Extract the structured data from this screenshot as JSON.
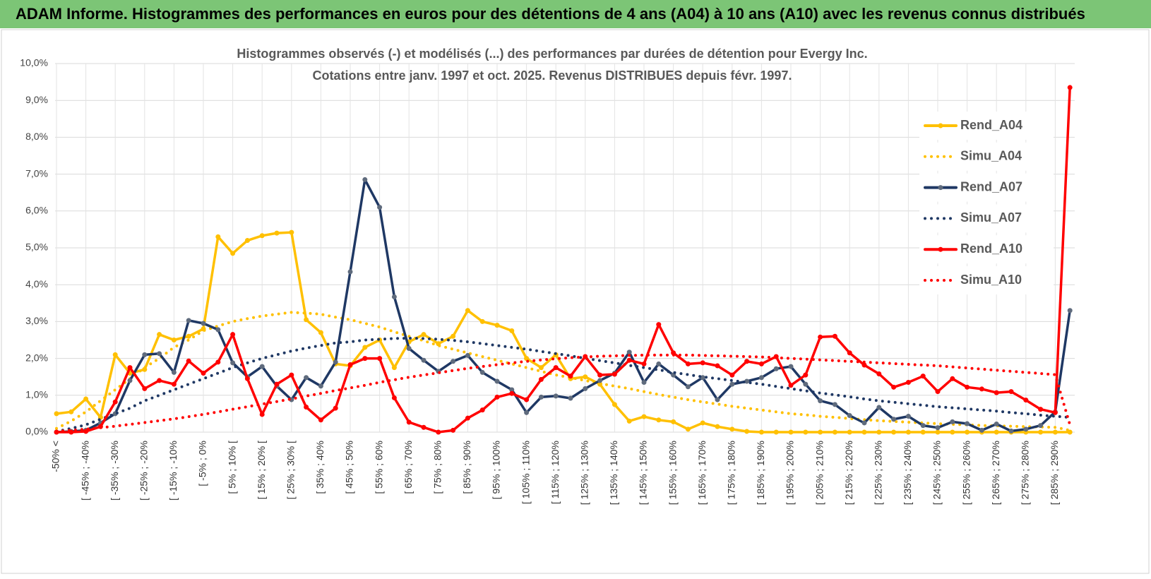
{
  "header": {
    "title": "ADAM Informe. Histogrammes des performances en euros pour des détentions de 4 ans (A04) à 10 ans (A10) avec les revenus connus distribués"
  },
  "chart_data": {
    "type": "line",
    "title": [
      "Histogrammes observés (-) et modélisés (...) des performances par durées de détention pour Evergy Inc.",
      "Cotations entre janv. 1997 et oct. 2025. Revenus DISTRIBUES depuis févr. 1997."
    ],
    "categories": [
      "-50% <",
      null,
      "[ -45% ; -40%",
      null,
      "[ -35% ; -30%",
      null,
      "[ -25% ; -20%",
      null,
      "[ -15% ; -10%",
      null,
      "[ -5% ; 0%",
      null,
      "[ 5% ; 10% [",
      null,
      "[ 15% ; 20% [",
      null,
      "[ 25% ; 30% [",
      null,
      "[ 35% ; 40%",
      null,
      "[ 45% ; 50%",
      null,
      "[ 55% ; 60%",
      null,
      "[ 65% ; 70%",
      null,
      "[ 75% ; 80%",
      null,
      "[ 85% ; 90%",
      null,
      "[ 95% ; 100%",
      null,
      "[ 105% ; 110%",
      null,
      "[ 115% ; 120%",
      null,
      "[ 125% ; 130%",
      null,
      "[ 135% ; 140%",
      null,
      "[ 145% ; 150%",
      null,
      "[ 155% ; 160%",
      null,
      "[ 165% ; 170%",
      null,
      "[ 175% ; 180%",
      null,
      "[ 185% ; 190%",
      null,
      "[ 195% ; 200%",
      null,
      "[ 205% ; 210%",
      null,
      "[ 215% ; 220%",
      null,
      "[ 225% ; 230%",
      null,
      "[ 235% ; 240%",
      null,
      "[ 245% ; 250%",
      null,
      "[ 255% ; 260%",
      null,
      "[ 265% ; 270%",
      null,
      "[ 275% ; 280%",
      null,
      "[ 285% ; 290%",
      null
    ],
    "series": [
      {
        "name": "Rend_A04",
        "color": "#ffc000",
        "marker_color": "#ffc000",
        "style": "solid",
        "values": [
          0.5,
          0.55,
          0.9,
          0.4,
          2.1,
          1.6,
          1.7,
          2.65,
          2.5,
          2.6,
          2.8,
          5.3,
          4.85,
          5.2,
          5.33,
          5.4,
          5.42,
          3.05,
          2.7,
          1.85,
          1.8,
          2.3,
          2.5,
          1.75,
          2.45,
          2.65,
          2.4,
          2.6,
          3.3,
          3.0,
          2.9,
          2.75,
          2.0,
          1.75,
          2.1,
          1.45,
          1.5,
          1.3,
          0.75,
          0.3,
          0.42,
          0.33,
          0.28,
          0.08,
          0.25,
          0.15,
          0.08,
          0.02,
          0,
          0,
          0,
          0,
          0,
          0,
          0,
          0,
          0,
          0,
          0,
          0,
          0,
          0,
          0,
          0,
          0,
          0,
          0,
          0,
          0,
          0
        ]
      },
      {
        "name": "Simu_A04",
        "color": "#ffc000",
        "style": "dotted",
        "values": [
          0.1,
          0.3,
          0.55,
          0.85,
          1.15,
          1.45,
          1.75,
          2.0,
          2.3,
          2.5,
          2.75,
          2.88,
          3.0,
          3.08,
          3.15,
          3.2,
          3.25,
          3.23,
          3.2,
          3.12,
          3.05,
          2.95,
          2.85,
          2.72,
          2.6,
          2.48,
          2.35,
          2.25,
          2.15,
          2.05,
          1.95,
          1.85,
          1.75,
          1.65,
          1.55,
          1.48,
          1.4,
          1.32,
          1.25,
          1.18,
          1.1,
          1.02,
          0.95,
          0.88,
          0.82,
          0.76,
          0.7,
          0.65,
          0.6,
          0.55,
          0.5,
          0.47,
          0.43,
          0.4,
          0.37,
          0.34,
          0.31,
          0.29,
          0.27,
          0.25,
          0.23,
          0.21,
          0.2,
          0.18,
          0.17,
          0.16,
          0.15,
          0.14,
          0.13,
          0.05
        ]
      },
      {
        "name": "Rend_A07",
        "color": "#1f3864",
        "marker_color": "#5f6b7d",
        "style": "solid",
        "values": [
          0.0,
          0.02,
          0.05,
          0.25,
          0.5,
          1.4,
          2.1,
          2.13,
          1.62,
          3.03,
          2.95,
          2.78,
          1.88,
          1.5,
          1.78,
          1.25,
          0.88,
          1.48,
          1.25,
          1.9,
          4.35,
          6.85,
          6.1,
          3.67,
          2.27,
          1.95,
          1.65,
          1.92,
          2.08,
          1.62,
          1.38,
          1.15,
          0.53,
          0.95,
          0.98,
          0.92,
          1.18,
          1.4,
          1.6,
          2.17,
          1.35,
          1.85,
          1.55,
          1.23,
          1.48,
          0.88,
          1.3,
          1.38,
          1.48,
          1.72,
          1.78,
          1.3,
          0.85,
          0.75,
          0.45,
          0.25,
          0.67,
          0.35,
          0.43,
          0.18,
          0.12,
          0.28,
          0.23,
          0.05,
          0.22,
          0.03,
          0.08,
          0.18,
          0.55,
          3.3
        ]
      },
      {
        "name": "Simu_A07",
        "color": "#1f3864",
        "style": "dotted",
        "values": [
          0.02,
          0.1,
          0.2,
          0.35,
          0.5,
          0.65,
          0.85,
          1.0,
          1.15,
          1.3,
          1.45,
          1.6,
          1.75,
          1.88,
          2.0,
          2.1,
          2.2,
          2.28,
          2.35,
          2.42,
          2.45,
          2.5,
          2.52,
          2.54,
          2.55,
          2.54,
          2.52,
          2.49,
          2.45,
          2.4,
          2.35,
          2.3,
          2.25,
          2.19,
          2.13,
          2.07,
          2.0,
          1.94,
          1.88,
          1.81,
          1.75,
          1.69,
          1.62,
          1.56,
          1.5,
          1.45,
          1.4,
          1.35,
          1.3,
          1.24,
          1.18,
          1.12,
          1.06,
          1.01,
          0.96,
          0.9,
          0.85,
          0.81,
          0.77,
          0.73,
          0.69,
          0.66,
          0.63,
          0.6,
          0.57,
          0.53,
          0.5,
          0.46,
          0.43,
          0.4
        ]
      },
      {
        "name": "Rend_A10",
        "color": "#ff0000",
        "marker_color": "#ff0000",
        "style": "solid",
        "values": [
          0,
          0,
          0.02,
          0.15,
          0.82,
          1.75,
          1.18,
          1.4,
          1.3,
          1.93,
          1.6,
          1.9,
          2.65,
          1.45,
          0.48,
          1.3,
          1.55,
          0.68,
          0.33,
          0.65,
          1.83,
          2.0,
          2.0,
          0.93,
          0.27,
          0.13,
          0.0,
          0.05,
          0.38,
          0.6,
          0.95,
          1.05,
          0.88,
          1.43,
          1.75,
          1.52,
          2.05,
          1.55,
          1.57,
          1.95,
          1.85,
          2.92,
          2.15,
          1.85,
          1.88,
          1.8,
          1.55,
          1.92,
          1.85,
          2.05,
          1.27,
          1.55,
          2.58,
          2.6,
          2.15,
          1.82,
          1.58,
          1.22,
          1.35,
          1.52,
          1.1,
          1.45,
          1.22,
          1.17,
          1.07,
          1.1,
          0.87,
          0.62,
          0.53,
          9.35
        ]
      },
      {
        "name": "Simu_A10",
        "color": "#ff0000",
        "style": "dotted",
        "values": [
          0.02,
          0.05,
          0.08,
          0.12,
          0.16,
          0.21,
          0.26,
          0.31,
          0.36,
          0.42,
          0.48,
          0.55,
          0.62,
          0.69,
          0.76,
          0.83,
          0.9,
          0.98,
          1.05,
          1.13,
          1.2,
          1.27,
          1.35,
          1.42,
          1.49,
          1.55,
          1.61,
          1.67,
          1.73,
          1.78,
          1.83,
          1.88,
          1.92,
          1.96,
          1.99,
          2.02,
          2.04,
          2.06,
          2.07,
          2.08,
          2.09,
          2.09,
          2.09,
          2.09,
          2.08,
          2.07,
          2.06,
          2.05,
          2.04,
          2.02,
          2.0,
          1.98,
          1.96,
          1.94,
          1.92,
          1.9,
          1.88,
          1.86,
          1.84,
          1.82,
          1.8,
          1.77,
          1.74,
          1.71,
          1.68,
          1.65,
          1.62,
          1.59,
          1.56,
          0.2
        ]
      }
    ],
    "ylim": [
      0,
      10
    ],
    "yticks": [
      {
        "value": 0,
        "label": "0,0%"
      },
      {
        "value": 1,
        "label": "1,0%"
      },
      {
        "value": 2,
        "label": "2,0%"
      },
      {
        "value": 3,
        "label": "3,0%"
      },
      {
        "value": 4,
        "label": "4,0%"
      },
      {
        "value": 5,
        "label": "5,0%"
      },
      {
        "value": 6,
        "label": "6,0%"
      },
      {
        "value": 7,
        "label": "7,0%"
      },
      {
        "value": 8,
        "label": "8,0%"
      },
      {
        "value": 9,
        "label": "9,0%"
      },
      {
        "value": 10,
        "label": "10,0%"
      }
    ],
    "grid": true,
    "legend": "right"
  }
}
